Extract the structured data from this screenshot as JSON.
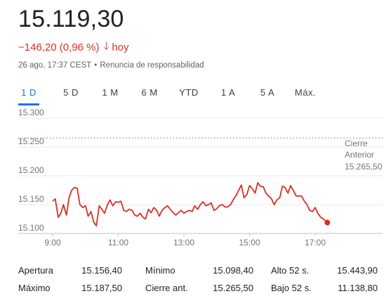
{
  "header": {
    "price": "15.119,30",
    "change_text": "−146,20 (0,96 %)",
    "arrow_icon": "arrow-down-icon",
    "period_label": "hoy",
    "timestamp": "26 ago, 17:37 CEST",
    "separator": "•",
    "disclaimer_link": "Renuncia de responsabilidad",
    "negative_color": "#d93025"
  },
  "tabs": [
    {
      "label": "1 D",
      "active": true
    },
    {
      "label": "5 D"
    },
    {
      "label": "1 M"
    },
    {
      "label": "6 M"
    },
    {
      "label": "YTD"
    },
    {
      "label": "1 A"
    },
    {
      "label": "5 A"
    },
    {
      "label": "Máx."
    }
  ],
  "chart_data": {
    "type": "line",
    "x_ticks": [
      "9:00",
      "11:00",
      "13:00",
      "15:00",
      "17:00"
    ],
    "y_ticks": [
      "15.100",
      "15.150",
      "15.200",
      "15.250",
      "15.300"
    ],
    "ylim": [
      15100,
      15300
    ],
    "line_color": "#d93025",
    "grid": true,
    "previous_close": {
      "label_line1": "Cierre",
      "label_line2": "Anterior",
      "value_text": "15.265,50",
      "value": 15265.5
    },
    "series": [
      {
        "x": [
          9.0,
          9.08,
          9.17,
          9.25,
          9.33,
          9.42,
          9.5,
          9.58,
          9.67,
          9.75,
          9.83,
          9.92,
          10.0,
          10.08,
          10.17,
          10.25,
          10.33,
          10.42,
          10.5,
          10.58,
          10.67,
          10.75,
          10.83,
          10.92,
          11.0,
          11.08,
          11.17,
          11.25,
          11.33,
          11.42,
          11.5,
          11.58,
          11.67,
          11.75,
          11.83,
          11.92,
          12.0,
          12.08,
          12.17,
          12.25,
          12.33,
          12.42,
          12.5,
          12.58,
          12.67,
          12.75,
          12.83,
          12.92,
          13.0,
          13.08,
          13.17,
          13.25,
          13.33,
          13.42,
          13.5,
          13.58,
          13.67,
          13.75,
          13.83,
          13.92,
          14.0,
          14.08,
          14.17,
          14.25,
          14.33,
          14.42,
          14.5,
          14.58,
          14.67,
          14.75,
          14.83,
          14.92,
          15.0,
          15.08,
          15.17,
          15.25,
          15.33,
          15.42,
          15.5,
          15.58,
          15.67,
          15.75,
          15.83,
          15.92,
          16.0,
          16.08,
          16.17,
          16.25,
          16.33,
          16.42,
          16.5,
          16.58,
          16.67,
          16.75,
          16.83,
          16.92,
          17.0,
          17.08,
          17.17,
          17.25,
          17.37
        ],
        "y": [
          15156,
          15160,
          15128,
          15135,
          15150,
          15132,
          15162,
          15175,
          15180,
          15178,
          15150,
          15145,
          15148,
          15130,
          15138,
          15120,
          15113,
          15148,
          15142,
          15135,
          15150,
          15158,
          15148,
          15155,
          15154,
          15156,
          15140,
          15138,
          15142,
          15140,
          15132,
          15130,
          15135,
          15128,
          15125,
          15142,
          15136,
          15145,
          15140,
          15130,
          15140,
          15145,
          15148,
          15142,
          15136,
          15132,
          15136,
          15140,
          15135,
          15138,
          15140,
          15138,
          15148,
          15142,
          15150,
          15155,
          15148,
          15150,
          15153,
          15140,
          15143,
          15148,
          15150,
          15146,
          15146,
          15150,
          15158,
          15165,
          15175,
          15184,
          15162,
          15168,
          15183,
          15178,
          15170,
          15188,
          15182,
          15181,
          15170,
          15165,
          15160,
          15150,
          15158,
          15162,
          15182,
          15180,
          15170,
          15183,
          15175,
          15165,
          15165,
          15165,
          15156,
          15150,
          15140,
          15138,
          15145,
          15135,
          15128,
          15125,
          15119
        ]
      }
    ]
  },
  "stats": [
    [
      {
        "label": "Apertura",
        "value": "15.156,40"
      },
      {
        "label": "Mínimo",
        "value": "15.098,40"
      },
      {
        "label": "Alto 52 s.",
        "value": "15.443,90"
      }
    ],
    [
      {
        "label": "Máximo",
        "value": "15.187,50"
      },
      {
        "label": "Cierre ant.",
        "value": "15.265,50"
      },
      {
        "label": "Bajo 52 s.",
        "value": "11.138,80"
      }
    ]
  ]
}
